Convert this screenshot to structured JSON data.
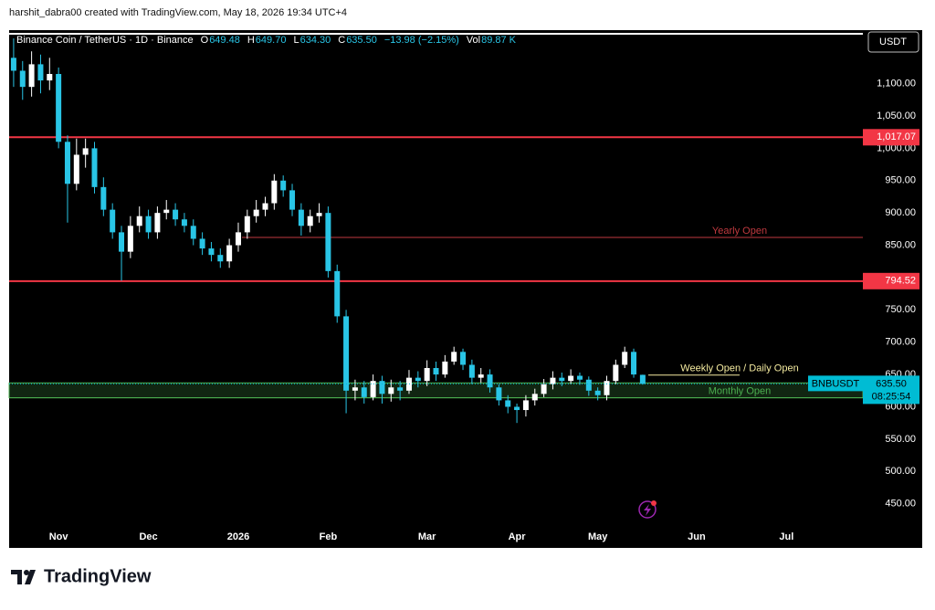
{
  "header": {
    "caption": "harshit_dabra00 created with TradingView.com, May 18, 2026 19:34 UTC+4"
  },
  "footer": {
    "brand": "TradingView"
  },
  "chart_data": {
    "type": "candlestick",
    "legend": {
      "symbol": "Binance Coin / TetherUS · 1D · Binance",
      "items": [
        {
          "key": "O",
          "value": "649.48"
        },
        {
          "key": "H",
          "value": "649.70"
        },
        {
          "key": "L",
          "value": "634.30"
        },
        {
          "key": "C",
          "value": "635.50"
        },
        {
          "key": "",
          "value": "−13.98 (−2.15%)"
        },
        {
          "key": "Vol",
          "value": "89.87 K"
        }
      ]
    },
    "currency": "USDT",
    "categories": [
      null,
      null,
      null,
      null,
      null,
      "Nov",
      null,
      null,
      null,
      null,
      null,
      null,
      null,
      null,
      null,
      "Dec",
      null,
      null,
      null,
      null,
      null,
      null,
      null,
      null,
      null,
      "2026",
      null,
      null,
      null,
      null,
      null,
      null,
      null,
      null,
      null,
      "Feb",
      null,
      null,
      null,
      null,
      null,
      null,
      null,
      null,
      null,
      null,
      "Mar",
      null,
      null,
      null,
      null,
      null,
      null,
      null,
      null,
      null,
      "Apr",
      null,
      null,
      null,
      null,
      null,
      null,
      null,
      null,
      "May",
      null,
      null,
      null,
      null,
      null,
      null,
      null,
      null,
      null,
      null,
      "Jun",
      null,
      null,
      null,
      null,
      null,
      null,
      null,
      null,
      null,
      "Jul",
      null,
      null,
      null,
      null,
      null,
      null,
      null,
      null
    ],
    "open": [
      1140,
      1120,
      1095,
      1130,
      1105,
      1115,
      1010,
      945,
      990,
      1000,
      940,
      905,
      870,
      840,
      880,
      895,
      870,
      900,
      905,
      890,
      880,
      860,
      845,
      835,
      825,
      850,
      870,
      895,
      905,
      915,
      950,
      935,
      905,
      880,
      895,
      900,
      810,
      740,
      625,
      630,
      615,
      640,
      620,
      630,
      625,
      645,
      640,
      660,
      650,
      670,
      685,
      665,
      645,
      650,
      630,
      610,
      600,
      595,
      610,
      620,
      635,
      645,
      640,
      648,
      642,
      625,
      618,
      640,
      665,
      685,
      649.48,
      null,
      null,
      null,
      null,
      null,
      null,
      null,
      null,
      null,
      null,
      null,
      null,
      null,
      null,
      null,
      null,
      null,
      null,
      null,
      null,
      null,
      null,
      null,
      null
    ],
    "high": [
      1170,
      1135,
      1150,
      1145,
      1140,
      1125,
      1020,
      1015,
      1015,
      1010,
      955,
      915,
      880,
      895,
      910,
      905,
      910,
      920,
      915,
      900,
      890,
      870,
      855,
      845,
      860,
      885,
      905,
      920,
      925,
      960,
      958,
      945,
      915,
      905,
      915,
      910,
      820,
      750,
      642,
      640,
      650,
      648,
      642,
      640,
      657,
      655,
      672,
      670,
      680,
      693,
      690,
      673,
      660,
      658,
      635,
      618,
      605,
      618,
      628,
      643,
      655,
      653,
      658,
      653,
      647,
      630,
      648,
      673,
      693,
      690,
      649.7,
      null,
      null,
      null,
      null,
      null,
      null,
      null,
      null,
      null,
      null,
      null,
      null,
      null,
      null,
      null,
      null,
      null,
      null,
      null,
      null,
      null,
      null,
      null,
      null
    ],
    "low": [
      1095,
      1075,
      1080,
      1085,
      1090,
      1000,
      885,
      935,
      970,
      930,
      895,
      860,
      795,
      830,
      870,
      860,
      860,
      890,
      880,
      870,
      850,
      835,
      825,
      815,
      815,
      840,
      860,
      885,
      895,
      905,
      925,
      895,
      865,
      870,
      885,
      800,
      730,
      590,
      610,
      605,
      610,
      605,
      608,
      610,
      620,
      630,
      632,
      640,
      645,
      665,
      657,
      635,
      637,
      622,
      602,
      590,
      575,
      585,
      602,
      615,
      627,
      632,
      635,
      634,
      617,
      610,
      610,
      635,
      660,
      645,
      634.3,
      null,
      null,
      null,
      null,
      null,
      null,
      null,
      null,
      null,
      null,
      null,
      null,
      null,
      null,
      null,
      null,
      null,
      null,
      null,
      null,
      null,
      null,
      null,
      null
    ],
    "close": [
      1120,
      1095,
      1130,
      1105,
      1115,
      1010,
      945,
      990,
      1000,
      940,
      905,
      870,
      840,
      880,
      895,
      870,
      900,
      905,
      890,
      880,
      860,
      845,
      835,
      825,
      850,
      870,
      895,
      905,
      915,
      950,
      935,
      905,
      880,
      895,
      900,
      810,
      740,
      625,
      630,
      615,
      640,
      620,
      630,
      625,
      645,
      640,
      660,
      650,
      670,
      685,
      665,
      645,
      650,
      630,
      610,
      600,
      595,
      610,
      620,
      635,
      645,
      640,
      648,
      642,
      625,
      618,
      640,
      665,
      685,
      650,
      635.5,
      null,
      null,
      null,
      null,
      null,
      null,
      null,
      null,
      null,
      null,
      null,
      null,
      null,
      null,
      null,
      null,
      null,
      null,
      null,
      null,
      null,
      null,
      null,
      null
    ],
    "up_color": "#ffffff",
    "down_color": "#29c5e6",
    "ylim": [
      417,
      1180
    ],
    "yticks": [
      {
        "value": 450,
        "label": "450.00"
      },
      {
        "value": 500,
        "label": "500.00"
      },
      {
        "value": 550,
        "label": "550.00"
      },
      {
        "value": 600,
        "label": "600.00"
      },
      {
        "value": 650,
        "label": "650.00"
      },
      {
        "value": 700,
        "label": "700.00"
      },
      {
        "value": 750,
        "label": "750.00"
      },
      {
        "value": 800,
        "label": "800.00"
      },
      {
        "value": 850,
        "label": "850.00"
      },
      {
        "value": 900,
        "label": "900.00"
      },
      {
        "value": 950,
        "label": "950.00"
      },
      {
        "value": 1000,
        "label": "1,000.00"
      },
      {
        "value": 1050,
        "label": "1,050.00"
      },
      {
        "value": 1100,
        "label": "1,100.00"
      }
    ],
    "grid": false,
    "levels": [
      {
        "value": 1017.07,
        "label": "1,017.07",
        "color": "#f23645"
      },
      {
        "value": 794.52,
        "label": "794.52",
        "color": "#f23645"
      },
      {
        "value": 862,
        "text": "Yearly Open",
        "color": "#c0393f"
      },
      {
        "value": 649,
        "text": "Weekly Open / Daily Open",
        "color": "#f5eba0"
      },
      {
        "value": 614,
        "text": "Monthly Open",
        "color": "#4caf50"
      }
    ],
    "zone": {
      "low": 614,
      "high": 637,
      "color": "#4caf50"
    },
    "last_price": {
      "value": 635.5,
      "label": "635.50",
      "symbol": "BNBUSDT",
      "countdown": "08:25:54",
      "color": "#00bcd4"
    }
  }
}
